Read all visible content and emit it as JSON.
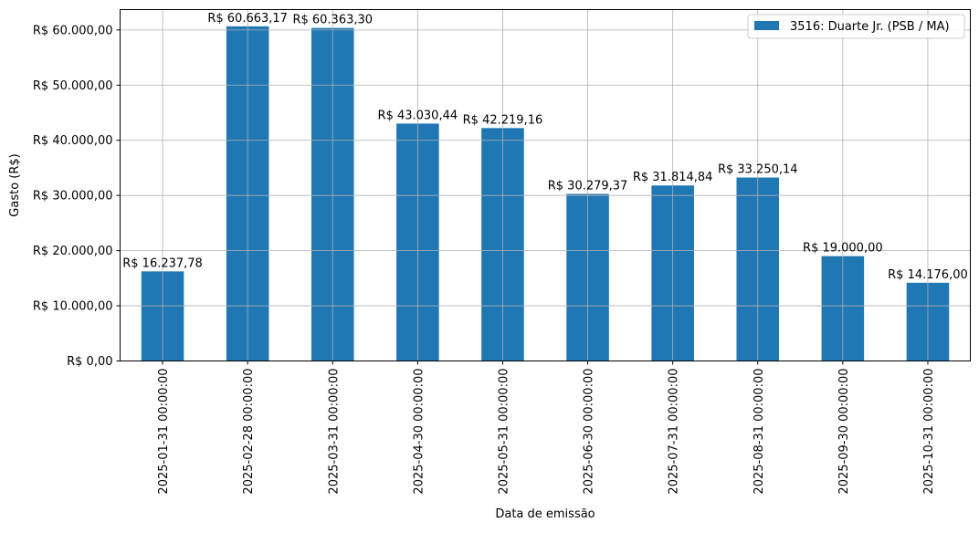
{
  "chart_data": {
    "type": "bar",
    "xlabel": "Data de emissão",
    "ylabel": "Gasto (R$)",
    "ylim": [
      0,
      63696.33
    ],
    "grid": true,
    "legend_position": "top-right",
    "categories": [
      "2025-01-31 00:00:00",
      "2025-02-28 00:00:00",
      "2025-03-31 00:00:00",
      "2025-04-30 00:00:00",
      "2025-05-31 00:00:00",
      "2025-06-30 00:00:00",
      "2025-07-31 00:00:00",
      "2025-08-31 00:00:00",
      "2025-09-30 00:00:00",
      "2025-10-31 00:00:00"
    ],
    "series": [
      {
        "name": "3516: Duarte Jr. (PSB / MA)",
        "color": "#1f77b4",
        "values": [
          16237.78,
          60663.17,
          60363.3,
          43030.44,
          42219.16,
          30279.37,
          31814.84,
          33250.14,
          19000.0,
          14176.0
        ],
        "labels": [
          "R$ 16.237,78",
          "R$ 60.663,17",
          "R$ 60.363,30",
          "R$ 43.030,44",
          "R$ 42.219,16",
          "R$ 30.279,37",
          "R$ 31.814,84",
          "R$ 33.250,14",
          "R$ 19.000,00",
          "R$ 14.176,00"
        ]
      }
    ],
    "yticks": [
      0,
      10000,
      20000,
      30000,
      40000,
      50000,
      60000
    ],
    "ytick_labels": [
      "R$ 0,00",
      "R$ 10.000,00",
      "R$ 20.000,00",
      "R$ 30.000,00",
      "R$ 40.000,00",
      "R$ 50.000,00",
      "R$ 60.000,00"
    ]
  }
}
